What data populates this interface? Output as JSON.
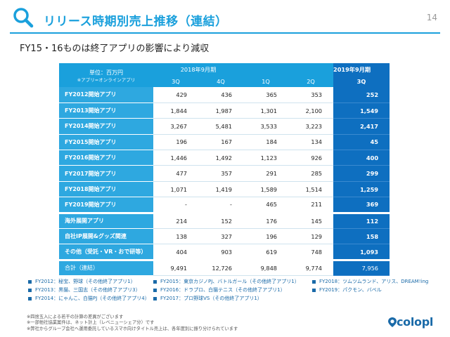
{
  "header": {
    "title": "リリース時期別売上推移（連結）",
    "page_number": "14"
  },
  "subtitle": "FY15・16ものは終了アプリの影響により減収",
  "table": {
    "unit_label": "単位：百万円",
    "unit_note": "※アプリ=オンラインアプリ",
    "period_2018": "2018年9月期",
    "period_2019": "2019年9月期",
    "quarters": [
      "3Q",
      "4Q",
      "1Q",
      "2Q",
      "3Q"
    ],
    "rows": [
      {
        "label": "FY2012開始アプリ",
        "values": [
          "429",
          "436",
          "365",
          "353",
          "252"
        ]
      },
      {
        "label": "FY2013開始アプリ",
        "values": [
          "1,844",
          "1,987",
          "1,301",
          "2,100",
          "1,549"
        ]
      },
      {
        "label": "FY2014開始アプリ",
        "values": [
          "3,267",
          "5,481",
          "3,533",
          "3,223",
          "2,417"
        ]
      },
      {
        "label": "FY2015開始アプリ",
        "values": [
          "196",
          "167",
          "184",
          "134",
          "45"
        ]
      },
      {
        "label": "FY2016開始アプリ",
        "values": [
          "1,446",
          "1,492",
          "1,123",
          "926",
          "400"
        ]
      },
      {
        "label": "FY2017開始アプリ",
        "values": [
          "477",
          "357",
          "291",
          "285",
          "299"
        ]
      },
      {
        "label": "FY2018開始アプリ",
        "values": [
          "1,071",
          "1,419",
          "1,589",
          "1,514",
          "1,259"
        ]
      },
      {
        "label": "FY2019開始アプリ",
        "values": [
          "-",
          "-",
          "465",
          "211",
          "369"
        ]
      },
      {
        "label": "海外展開アプリ",
        "values": [
          "214",
          "152",
          "176",
          "145",
          "112"
        ]
      },
      {
        "label": "自社IP展開&グッズ関連",
        "values": [
          "138",
          "327",
          "196",
          "129",
          "158"
        ]
      },
      {
        "label": "その他（受託・VR・おで研等）",
        "values": [
          "404",
          "903",
          "619",
          "748",
          "1,093"
        ]
      },
      {
        "label": "合計（連結）",
        "values": [
          "9,491",
          "12,726",
          "9,848",
          "9,774",
          "7,956"
        ]
      }
    ]
  },
  "legend": [
    "FY2012：秘宝、野球（その他終了アプリ1）",
    "FY2013：黒猫、三国志（その他終了アプリ3）",
    "FY2014：にゃんこ、白猫PJ（その他終了アプリ4）",
    "FY2015：東京カジノPJ、バトルガール（その他終了アプリ1）",
    "FY2016：ドラプロ、白猫テニス（その他終了アプリ1）",
    "FY2017：プロ野球VS（その他終了アプリ1）",
    "FY2018：ツムツムランド、アリス、DREAM!ing",
    "FY2019：パクモン、バベル"
  ],
  "notes": [
    "※四捨五入による若干の計算の差異がございます",
    "※一部他社協業案件は、ネット計上（レベニューシェア分）です",
    "※弊社からグループ会社へ運用委託しているスマホ向けタイトル売上は、各年度別に振り分けられています"
  ],
  "logo_text": "colopl",
  "colors": {
    "accent": "#1aa0dc",
    "highlight": "#0e6fc0",
    "legend": "#1a6aa8"
  }
}
